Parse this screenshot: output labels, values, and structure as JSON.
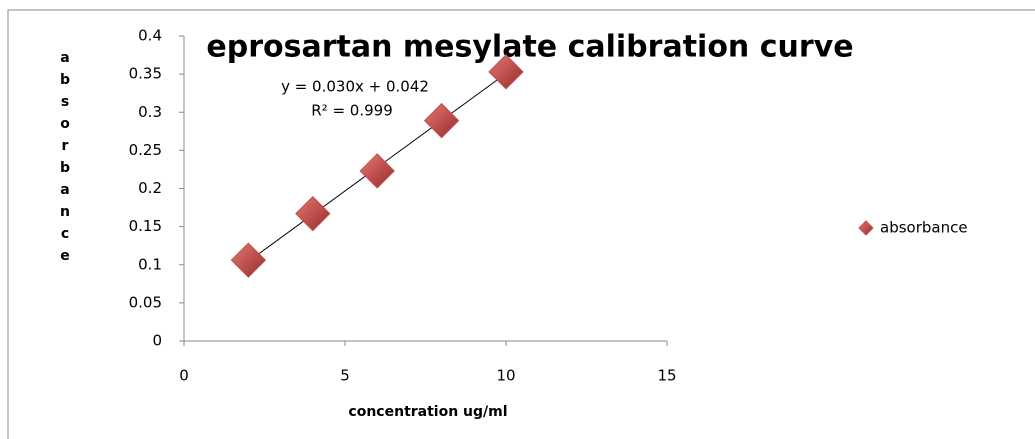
{
  "chart_data": {
    "type": "scatter",
    "title": "eprosartan mesylate calibration curve",
    "xlabel": "concentration ug/ml",
    "ylabel": "absorbance",
    "series": [
      {
        "name": "absorbance",
        "color": "#c0504d",
        "x": [
          2,
          4,
          6,
          8,
          10
        ],
        "values": [
          0.106,
          0.167,
          0.223,
          0.289,
          0.353
        ]
      }
    ],
    "annotations": [
      "y = 0.030x + 0.042",
      "R² = 0.999"
    ],
    "xlim": [
      0,
      15
    ],
    "xticks": [
      0,
      5,
      10,
      15
    ],
    "ylim": [
      0,
      0.4
    ],
    "yticks": [
      0,
      0.05,
      0.1,
      0.15,
      0.2,
      0.25,
      0.3,
      0.35,
      0.4
    ],
    "trendline": true,
    "grid": false,
    "legend": "right"
  }
}
